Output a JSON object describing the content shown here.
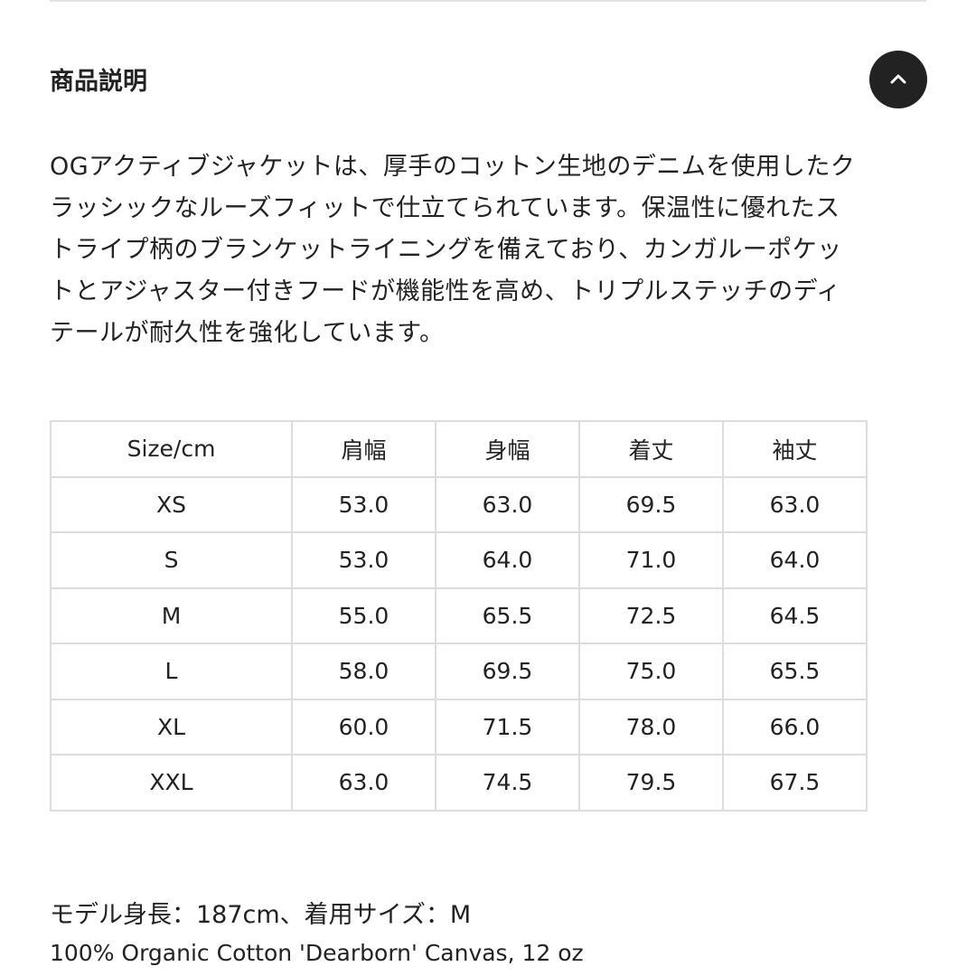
{
  "section": {
    "title": "商品説明",
    "scroll_top_icon": "chevron-up-icon",
    "description": "OGアクティブジャケットは、厚手のコットン生地のデニムを使用したクラッシックなルーズフィットで仕立てられています。保温性に優れたストライプ柄のブランケットライニングを備えており、カンガルーポケットとアジャスター付きフードが機能性を高め、トリプルステッチのディテールが耐久性を強化しています。"
  },
  "size_table": {
    "headers": [
      "Size/cm",
      "肩幅",
      "身幅",
      "着丈",
      "袖丈"
    ],
    "rows": [
      [
        "XS",
        "53.0",
        "63.0",
        "69.5",
        "63.0"
      ],
      [
        "S",
        "53.0",
        "64.0",
        "71.0",
        "64.0"
      ],
      [
        "M",
        "55.0",
        "65.5",
        "72.5",
        "64.5"
      ],
      [
        "L",
        "58.0",
        "69.5",
        "75.0",
        "65.5"
      ],
      [
        "XL",
        "60.0",
        "71.5",
        "78.0",
        "66.0"
      ],
      [
        "XXL",
        "63.0",
        "74.5",
        "79.5",
        "67.5"
      ]
    ]
  },
  "model_info": "モデル身長：187cm、着用サイズ：M",
  "material": "100% Organic Cotton 'Dearborn' Canvas, 12 oz"
}
